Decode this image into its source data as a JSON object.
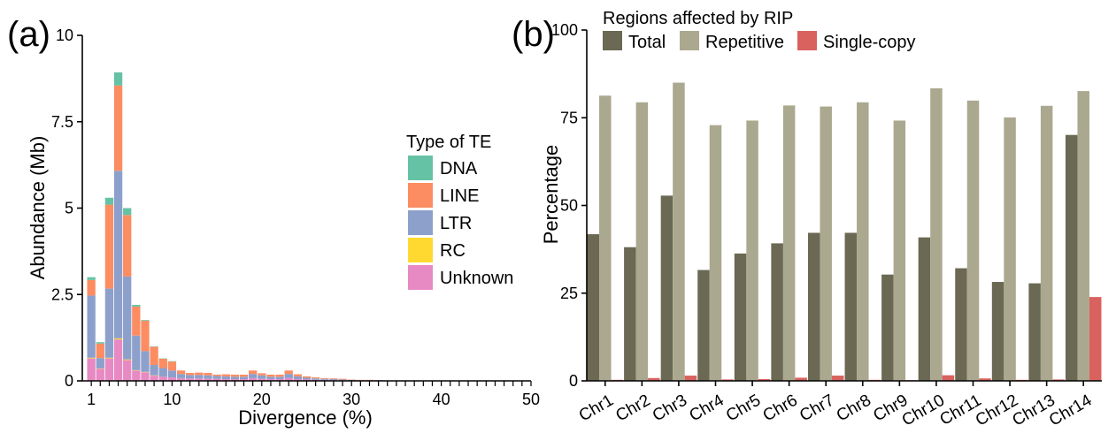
{
  "panel_labels": {
    "a": "(a)",
    "b": "(b)"
  },
  "colors": {
    "DNA": "#66c2a5",
    "LINE": "#fc8d62",
    "LTR": "#8da0cb",
    "RC": "#ffd92f",
    "Unknown": "#e78ac3",
    "Total": "#6b6853",
    "Repetitive": "#aba890",
    "Single-copy": "#d9625e"
  },
  "chart_data": [
    {
      "type": "bar",
      "stacked": true,
      "xlabel": "Divergence (%)",
      "ylabel": "Abundance (Mb)",
      "xlim": [
        0,
        50
      ],
      "ylim": [
        0,
        10
      ],
      "x_ticks": [
        "1",
        "10",
        "20",
        "30",
        "40",
        "50"
      ],
      "y_ticks": [
        "0",
        "2.5",
        "5",
        "7.5",
        "10"
      ],
      "legend": {
        "title": "Type of TE",
        "position": "right",
        "entries": [
          "DNA",
          "LINE",
          "LTR",
          "RC",
          "Unknown"
        ]
      },
      "x": [
        1,
        2,
        3,
        4,
        5,
        6,
        7,
        8,
        9,
        10,
        11,
        12,
        13,
        14,
        15,
        16,
        17,
        18,
        19,
        20,
        21,
        22,
        23,
        24,
        25,
        26,
        27,
        28,
        29,
        30,
        31,
        32,
        33,
        34,
        35,
        36,
        37,
        38,
        39,
        40,
        41,
        42,
        43,
        44,
        45,
        46,
        47,
        48,
        49,
        50
      ],
      "series": [
        {
          "name": "Unknown",
          "values": [
            0.65,
            0.35,
            0.65,
            1.2,
            0.6,
            0.3,
            0.25,
            0.15,
            0.12,
            0.1,
            0.08,
            0.07,
            0.07,
            0.06,
            0.06,
            0.05,
            0.05,
            0.05,
            0.08,
            0.06,
            0.05,
            0.05,
            0.08,
            0.05,
            0.04,
            0.03,
            0.03,
            0.02,
            0.02,
            0.01,
            0.01,
            0.01,
            0.01,
            0,
            0,
            0,
            0,
            0,
            0,
            0,
            0,
            0,
            0,
            0,
            0,
            0,
            0,
            0,
            0,
            0
          ]
        },
        {
          "name": "RC",
          "values": [
            0.02,
            0.01,
            0.02,
            0.03,
            0.02,
            0.01,
            0.01,
            0.01,
            0,
            0,
            0,
            0,
            0,
            0,
            0,
            0,
            0,
            0,
            0,
            0,
            0,
            0,
            0,
            0,
            0,
            0,
            0,
            0,
            0,
            0,
            0,
            0,
            0,
            0,
            0,
            0,
            0,
            0,
            0,
            0,
            0,
            0,
            0,
            0,
            0,
            0,
            0,
            0,
            0,
            0
          ]
        },
        {
          "name": "LTR",
          "values": [
            1.8,
            0.3,
            2.0,
            4.85,
            2.4,
            1.0,
            0.6,
            0.3,
            0.25,
            0.2,
            0.12,
            0.1,
            0.1,
            0.1,
            0.08,
            0.08,
            0.07,
            0.07,
            0.12,
            0.1,
            0.07,
            0.07,
            0.12,
            0.08,
            0.05,
            0.04,
            0.03,
            0.03,
            0.02,
            0.02,
            0.01,
            0.01,
            0.01,
            0.01,
            0,
            0,
            0,
            0,
            0,
            0,
            0,
            0,
            0,
            0,
            0,
            0,
            0,
            0,
            0,
            0
          ]
        },
        {
          "name": "LINE",
          "values": [
            0.45,
            0.42,
            2.43,
            2.47,
            1.78,
            0.84,
            0.88,
            0.53,
            0.27,
            0.26,
            0.1,
            0.06,
            0.07,
            0.07,
            0.04,
            0.06,
            0.06,
            0.06,
            0.1,
            0.06,
            0.06,
            0.06,
            0.1,
            0.06,
            0.04,
            0.03,
            0.02,
            0.02,
            0.02,
            0.01,
            0.01,
            0.01,
            0,
            0,
            0,
            0,
            0,
            0,
            0,
            0,
            0,
            0,
            0,
            0,
            0,
            0,
            0,
            0,
            0,
            0
          ]
        },
        {
          "name": "DNA",
          "values": [
            0.08,
            0.04,
            0.2,
            0.38,
            0.2,
            0.05,
            0.02,
            0.01,
            0.01,
            0.01,
            0,
            0,
            0,
            0,
            0,
            0,
            0,
            0,
            0,
            0,
            0,
            0,
            0,
            0,
            0,
            0,
            0,
            0,
            0,
            0,
            0,
            0,
            0,
            0,
            0,
            0,
            0,
            0,
            0,
            0,
            0,
            0,
            0,
            0,
            0,
            0,
            0,
            0,
            0,
            0
          ]
        }
      ]
    },
    {
      "type": "bar",
      "xlabel": "",
      "ylabel": "Percentage",
      "ylim": [
        0,
        100
      ],
      "y_ticks": [
        "0",
        "25",
        "50",
        "75",
        "100"
      ],
      "legend": {
        "title": "Regions affected by RIP",
        "position": "top",
        "entries": [
          "Total",
          "Repetitive",
          "Single-copy"
        ]
      },
      "categories": [
        "Chr1",
        "Chr2",
        "Chr3",
        "Chr4",
        "Chr5",
        "Chr6",
        "Chr7",
        "Chr8",
        "Chr9",
        "Chr10",
        "Chr11",
        "Chr12",
        "Chr13",
        "Chr14"
      ],
      "series": [
        {
          "name": "Total",
          "values": [
            41.8,
            38.1,
            52.8,
            31.6,
            36.3,
            39.2,
            42.2,
            42.2,
            30.3,
            40.9,
            32.1,
            28.2,
            27.8,
            70.1
          ]
        },
        {
          "name": "Repetitive",
          "values": [
            81.3,
            79.4,
            85.0,
            72.9,
            74.2,
            78.5,
            78.2,
            79.4,
            74.2,
            83.4,
            79.9,
            75.1,
            78.4,
            82.6
          ]
        },
        {
          "name": "Single-copy",
          "values": [
            0.3,
            0.8,
            1.5,
            0.4,
            0.5,
            0.9,
            1.5,
            0.3,
            0.2,
            1.6,
            0.7,
            0.3,
            0.4,
            23.9
          ]
        }
      ]
    }
  ]
}
